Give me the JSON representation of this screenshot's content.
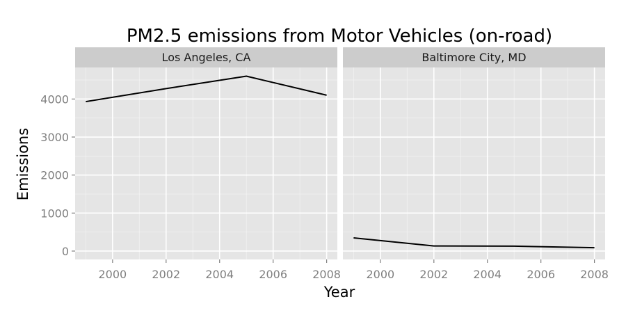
{
  "chart_data": {
    "type": "line",
    "title": "PM2.5 emissions from Motor Vehicles (on-road)",
    "xlabel": "Year",
    "ylabel": "Emissions",
    "xlim": [
      1998.6,
      2008.4
    ],
    "ylim": [
      -220,
      4830
    ],
    "x_ticks": [
      2000,
      2002,
      2004,
      2006,
      2008
    ],
    "y_ticks": [
      0,
      1000,
      2000,
      3000,
      4000
    ],
    "grid": true,
    "facets": [
      {
        "label": "Los Angeles, CA",
        "x": [
          1999,
          2002,
          2005,
          2008
        ],
        "y": [
          3931,
          4274,
          4601,
          4101
        ]
      },
      {
        "label": "Baltimore City, MD",
        "x": [
          1999,
          2002,
          2005,
          2008
        ],
        "y": [
          347,
          134,
          130,
          88
        ]
      }
    ]
  }
}
